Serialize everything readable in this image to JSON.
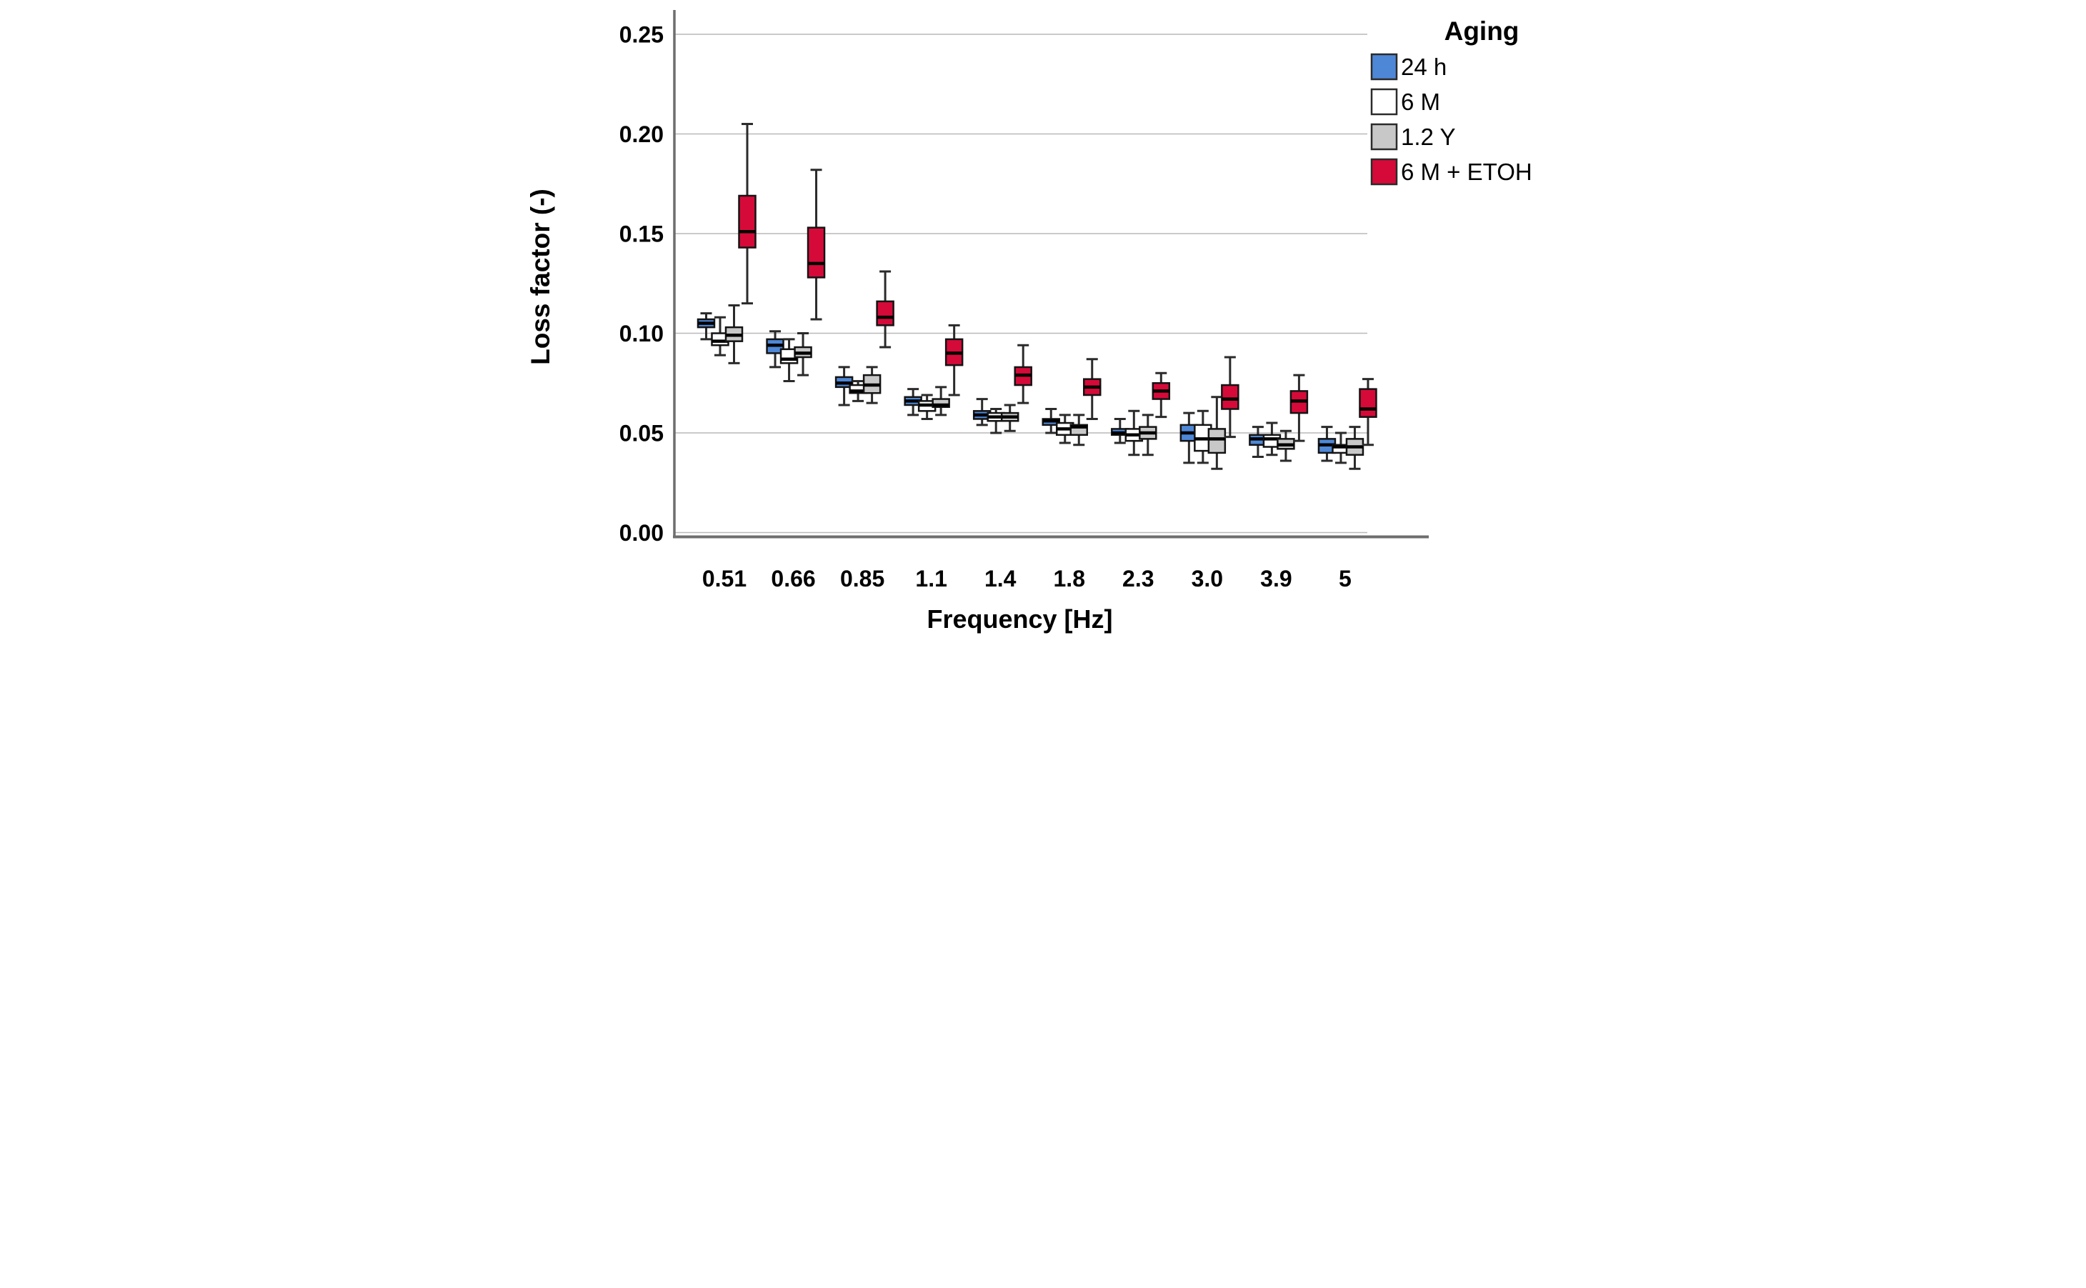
{
  "chart_data": {
    "type": "box",
    "title": "",
    "xlabel": "Frequency [Hz]",
    "ylabel": "Loss factor (-)",
    "categories": [
      "0.51",
      "0.66",
      "0.85",
      "1.1",
      "1.4",
      "1.8",
      "2.3",
      "3.0",
      "3.9",
      "5"
    ],
    "y_ticks": [
      "0.00",
      "0.05",
      "0.10",
      "0.15",
      "0.20",
      "0.25"
    ],
    "ylim": [
      -0.002,
      0.262
    ],
    "grid": true,
    "legend": {
      "title": "Aging",
      "position": "top-right",
      "entries": [
        {
          "label": "24 h",
          "color": "#4e87d6"
        },
        {
          "label": "6 M",
          "color": "#ffffff"
        },
        {
          "label": "1.2 Y",
          "color": "#c8c8c8"
        },
        {
          "label": "6 M + ETOH",
          "color": "#d60a39"
        }
      ]
    },
    "box_stats_order": [
      "whisker_low",
      "q1",
      "median",
      "q3",
      "whisker_high"
    ],
    "series": [
      {
        "name": "24 h",
        "color": "#4e87d6",
        "boxes": [
          [
            0.097,
            0.103,
            0.105,
            0.107,
            0.11
          ],
          [
            0.083,
            0.09,
            0.094,
            0.097,
            0.101
          ],
          [
            0.064,
            0.073,
            0.075,
            0.078,
            0.083
          ],
          [
            0.059,
            0.064,
            0.066,
            0.068,
            0.072
          ],
          [
            0.054,
            0.057,
            0.059,
            0.061,
            0.067
          ],
          [
            0.05,
            0.054,
            0.056,
            0.057,
            0.062
          ],
          [
            0.045,
            0.049,
            0.05,
            0.052,
            0.057
          ],
          [
            0.035,
            0.046,
            0.05,
            0.054,
            0.06
          ],
          [
            0.038,
            0.044,
            0.047,
            0.049,
            0.053
          ],
          [
            0.036,
            0.04,
            0.044,
            0.047,
            0.053
          ]
        ]
      },
      {
        "name": "6 M",
        "color": "#ffffff",
        "boxes": [
          [
            0.089,
            0.094,
            0.096,
            0.1,
            0.108
          ],
          [
            0.076,
            0.085,
            0.087,
            0.092,
            0.097
          ],
          [
            0.066,
            0.07,
            0.071,
            0.074,
            0.076
          ],
          [
            0.057,
            0.061,
            0.064,
            0.066,
            0.069
          ],
          [
            0.05,
            0.056,
            0.058,
            0.06,
            0.062
          ],
          [
            0.045,
            0.049,
            0.052,
            0.055,
            0.059
          ],
          [
            0.039,
            0.046,
            0.049,
            0.052,
            0.061
          ],
          [
            0.035,
            0.041,
            0.047,
            0.054,
            0.061
          ],
          [
            0.039,
            0.043,
            0.047,
            0.049,
            0.055
          ],
          [
            0.035,
            0.04,
            0.043,
            0.044,
            0.05
          ]
        ]
      },
      {
        "name": "1.2 Y",
        "color": "#c8c8c8",
        "boxes": [
          [
            0.085,
            0.096,
            0.099,
            0.103,
            0.114
          ],
          [
            0.079,
            0.088,
            0.09,
            0.093,
            0.1
          ],
          [
            0.065,
            0.07,
            0.074,
            0.079,
            0.083
          ],
          [
            0.059,
            0.063,
            0.064,
            0.067,
            0.073
          ],
          [
            0.051,
            0.056,
            0.058,
            0.06,
            0.064
          ],
          [
            0.044,
            0.049,
            0.053,
            0.054,
            0.059
          ],
          [
            0.039,
            0.047,
            0.05,
            0.053,
            0.059
          ],
          [
            0.032,
            0.04,
            0.047,
            0.052,
            0.068
          ],
          [
            0.036,
            0.042,
            0.044,
            0.047,
            0.051
          ],
          [
            0.032,
            0.039,
            0.043,
            0.047,
            0.053
          ]
        ]
      },
      {
        "name": "6 M + ETOH",
        "color": "#d60a39",
        "boxes": [
          [
            0.115,
            0.143,
            0.151,
            0.169,
            0.205
          ],
          [
            0.107,
            0.128,
            0.135,
            0.153,
            0.182
          ],
          [
            0.093,
            0.104,
            0.108,
            0.116,
            0.131
          ],
          [
            0.069,
            0.084,
            0.09,
            0.097,
            0.104
          ],
          [
            0.065,
            0.074,
            0.079,
            0.083,
            0.094
          ],
          [
            0.057,
            0.069,
            0.073,
            0.077,
            0.087
          ],
          [
            0.058,
            0.067,
            0.071,
            0.075,
            0.08
          ],
          [
            0.048,
            0.062,
            0.067,
            0.074,
            0.088
          ],
          [
            0.046,
            0.06,
            0.066,
            0.071,
            0.079
          ],
          [
            0.044,
            0.058,
            0.062,
            0.072,
            0.077
          ]
        ]
      }
    ]
  }
}
